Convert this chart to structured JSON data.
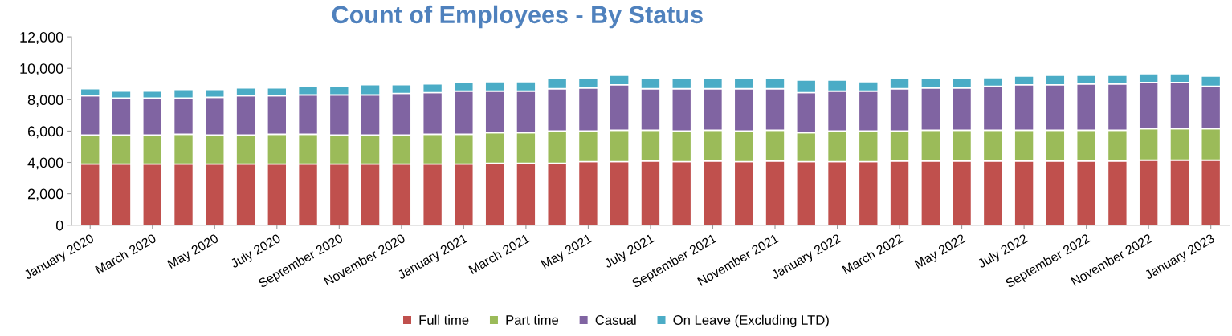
{
  "chart_data": {
    "type": "bar",
    "title": "Count of Employees - By Status",
    "stacked": true,
    "categories": [
      "January 2020",
      null,
      "March 2020",
      null,
      "May 2020",
      null,
      "July 2020",
      null,
      "September 2020",
      null,
      "November 2020",
      null,
      "January 2021",
      null,
      "March 2021",
      null,
      "May 2021",
      null,
      "July 2021",
      null,
      "September 2021",
      null,
      "November 2021",
      null,
      "January 2022",
      null,
      "March 2022",
      null,
      "May 2022",
      null,
      "July 2022",
      null,
      "September 2022",
      null,
      "November 2022",
      null,
      "January 2023"
    ],
    "series": [
      {
        "name": "Full time",
        "color": "#c0504d",
        "values": [
          3900,
          3900,
          3900,
          3900,
          3900,
          3900,
          3900,
          3900,
          3900,
          3900,
          3900,
          3900,
          3900,
          3950,
          3950,
          3950,
          4050,
          4050,
          4100,
          4050,
          4100,
          4050,
          4100,
          4050,
          4050,
          4050,
          4100,
          4100,
          4100,
          4100,
          4100,
          4100,
          4100,
          4100,
          4150,
          4150,
          4150
        ]
      },
      {
        "name": "Part time",
        "color": "#9bbb59",
        "values": [
          1850,
          1850,
          1850,
          1900,
          1850,
          1850,
          1900,
          1900,
          1850,
          1850,
          1850,
          1900,
          1900,
          1950,
          1950,
          2050,
          1950,
          2000,
          1950,
          1950,
          1950,
          1950,
          1950,
          1850,
          1950,
          1950,
          1900,
          1950,
          1950,
          1950,
          1950,
          1950,
          1950,
          1950,
          2000,
          2000,
          2000
        ]
      },
      {
        "name": "Casual",
        "color": "#8064a2",
        "values": [
          2500,
          2350,
          2350,
          2300,
          2400,
          2500,
          2450,
          2500,
          2550,
          2550,
          2650,
          2650,
          2750,
          2650,
          2650,
          2700,
          2750,
          2900,
          2650,
          2700,
          2650,
          2700,
          2650,
          2550,
          2550,
          2550,
          2700,
          2700,
          2700,
          2800,
          2900,
          2900,
          2950,
          2950,
          2950,
          2950,
          2700
        ]
      },
      {
        "name": "On Leave (Excluding LTD)",
        "color": "#4bacc6",
        "values": [
          450,
          450,
          450,
          550,
          500,
          500,
          500,
          550,
          550,
          650,
          550,
          550,
          550,
          600,
          600,
          650,
          600,
          600,
          650,
          650,
          650,
          650,
          650,
          800,
          700,
          600,
          650,
          600,
          600,
          550,
          550,
          600,
          550,
          550,
          550,
          550,
          650
        ]
      }
    ],
    "ylim": [
      0,
      12000
    ],
    "yticks": [
      {
        "value": 0,
        "label": "0"
      },
      {
        "value": 2000,
        "label": "2,000"
      },
      {
        "value": 4000,
        "label": "4,000"
      },
      {
        "value": 6000,
        "label": "6,000"
      },
      {
        "value": 8000,
        "label": "8,000"
      },
      {
        "value": 10000,
        "label": "10,000"
      },
      {
        "value": 12000,
        "label": "12,000"
      }
    ],
    "grid": false,
    "legend": "bottom"
  }
}
